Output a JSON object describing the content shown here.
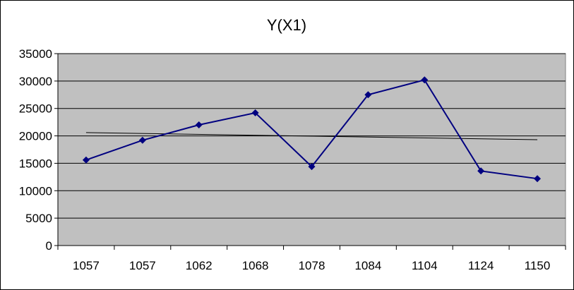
{
  "chart_data": {
    "type": "line",
    "title": "Y(X1)",
    "xlabel": "",
    "ylabel": "",
    "categories": [
      "1057",
      "1057",
      "1062",
      "1068",
      "1078",
      "1084",
      "1104",
      "1124",
      "1150"
    ],
    "series": [
      {
        "values": [
          15600,
          19200,
          22000,
          24200,
          14400,
          27500,
          30200,
          13600,
          12200
        ],
        "color": "#000080",
        "marker": "diamond"
      }
    ],
    "trendline": {
      "type": "linear",
      "start": 20600,
      "end": 19300,
      "color": "#000000"
    },
    "ylim": [
      0,
      35000
    ],
    "yticks": [
      0,
      5000,
      10000,
      15000,
      20000,
      25000,
      30000,
      35000
    ],
    "grid": true,
    "legend": "none",
    "plot_background": "#c0c0c0"
  }
}
